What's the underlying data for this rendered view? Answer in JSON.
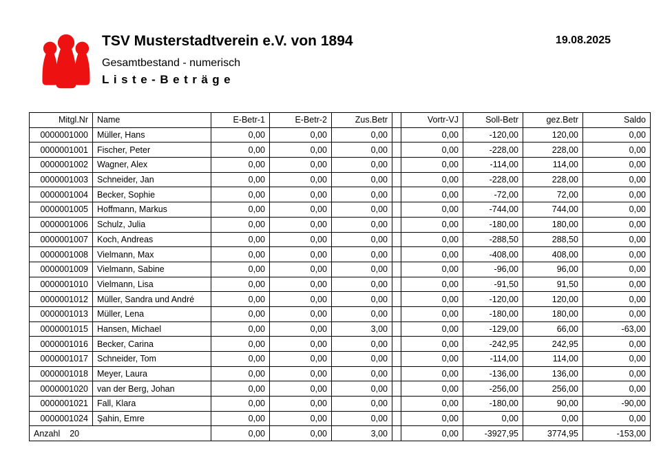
{
  "header": {
    "title": "TSV Musterstadtverein e.V. von 1894",
    "subtitle": "Gesamtbestand - numerisch",
    "list_title": "Liste-Beträge",
    "date": "19.08.2025"
  },
  "logo": {
    "description": "three-red-pawn-figures",
    "color": "#ee1111"
  },
  "table": {
    "columns": [
      {
        "key": "mitglnr",
        "label": "Mitgl.Nr",
        "align": "right"
      },
      {
        "key": "name",
        "label": "Name",
        "align": "left"
      },
      {
        "key": "ebetr1",
        "label": "E-Betr-1",
        "align": "right"
      },
      {
        "key": "ebetr2",
        "label": "E-Betr-2",
        "align": "right"
      },
      {
        "key": "zusbetr",
        "label": "Zus.Betr",
        "align": "right"
      },
      {
        "key": "spacer",
        "label": "",
        "align": "right"
      },
      {
        "key": "vortrvj",
        "label": "Vortr-VJ",
        "align": "right"
      },
      {
        "key": "sollbetr",
        "label": "Soll-Betr",
        "align": "right"
      },
      {
        "key": "gezbetr",
        "label": "gez.Betr",
        "align": "right"
      },
      {
        "key": "saldo",
        "label": "Saldo",
        "align": "right"
      }
    ],
    "rows": [
      [
        "0000001000",
        "Müller, Hans",
        "0,00",
        "0,00",
        "0,00",
        "",
        "0,00",
        "-120,00",
        "120,00",
        "0,00"
      ],
      [
        "0000001001",
        "Fischer, Peter",
        "0,00",
        "0,00",
        "0,00",
        "",
        "0,00",
        "-228,00",
        "228,00",
        "0,00"
      ],
      [
        "0000001002",
        "Wagner, Alex",
        "0,00",
        "0,00",
        "0,00",
        "",
        "0,00",
        "-114,00",
        "114,00",
        "0,00"
      ],
      [
        "0000001003",
        "Schneider, Jan",
        "0,00",
        "0,00",
        "0,00",
        "",
        "0,00",
        "-228,00",
        "228,00",
        "0,00"
      ],
      [
        "0000001004",
        "Becker, Sophie",
        "0,00",
        "0,00",
        "0,00",
        "",
        "0,00",
        "-72,00",
        "72,00",
        "0,00"
      ],
      [
        "0000001005",
        "Hoffmann, Markus",
        "0,00",
        "0,00",
        "0,00",
        "",
        "0,00",
        "-744,00",
        "744,00",
        "0,00"
      ],
      [
        "0000001006",
        "Schulz, Julia",
        "0,00",
        "0,00",
        "0,00",
        "",
        "0,00",
        "-180,00",
        "180,00",
        "0,00"
      ],
      [
        "0000001007",
        "Koch, Andreas",
        "0,00",
        "0,00",
        "0,00",
        "",
        "0,00",
        "-288,50",
        "288,50",
        "0,00"
      ],
      [
        "0000001008",
        "Vielmann, Max",
        "0,00",
        "0,00",
        "0,00",
        "",
        "0,00",
        "-408,00",
        "408,00",
        "0,00"
      ],
      [
        "0000001009",
        "Vielmann, Sabine",
        "0,00",
        "0,00",
        "0,00",
        "",
        "0,00",
        "-96,00",
        "96,00",
        "0,00"
      ],
      [
        "0000001010",
        "Vielmann, Lisa",
        "0,00",
        "0,00",
        "0,00",
        "",
        "0,00",
        "-91,50",
        "91,50",
        "0,00"
      ],
      [
        "0000001012",
        "Müller, Sandra und André",
        "0,00",
        "0,00",
        "0,00",
        "",
        "0,00",
        "-120,00",
        "120,00",
        "0,00"
      ],
      [
        "0000001013",
        "Müller, Lena",
        "0,00",
        "0,00",
        "0,00",
        "",
        "0,00",
        "-180,00",
        "180,00",
        "0,00"
      ],
      [
        "0000001015",
        "Hansen, Michael",
        "0,00",
        "0,00",
        "3,00",
        "",
        "0,00",
        "-129,00",
        "66,00",
        "-63,00"
      ],
      [
        "0000001016",
        "Becker, Carina",
        "0,00",
        "0,00",
        "0,00",
        "",
        "0,00",
        "-242,95",
        "242,95",
        "0,00"
      ],
      [
        "0000001017",
        "Schneider, Tom",
        "0,00",
        "0,00",
        "0,00",
        "",
        "0,00",
        "-114,00",
        "114,00",
        "0,00"
      ],
      [
        "0000001018",
        "Meyer, Laura",
        "0,00",
        "0,00",
        "0,00",
        "",
        "0,00",
        "-136,00",
        "136,00",
        "0,00"
      ],
      [
        "0000001020",
        "van der Berg, Johan",
        "0,00",
        "0,00",
        "0,00",
        "",
        "0,00",
        "-256,00",
        "256,00",
        "0,00"
      ],
      [
        "0000001021",
        "Fall, Klara",
        "0,00",
        "0,00",
        "0,00",
        "",
        "0,00",
        "-180,00",
        "90,00",
        "-90,00"
      ],
      [
        "0000001024",
        "Şahin, Emre",
        "0,00",
        "0,00",
        "0,00",
        "",
        "0,00",
        "0,00",
        "0,00",
        "0,00"
      ]
    ],
    "footer": {
      "label": "Anzahl",
      "count": "20",
      "values": [
        "0,00",
        "0,00",
        "3,00",
        "",
        "0,00",
        "-3927,95",
        "3774,95",
        "-153,00"
      ]
    }
  }
}
